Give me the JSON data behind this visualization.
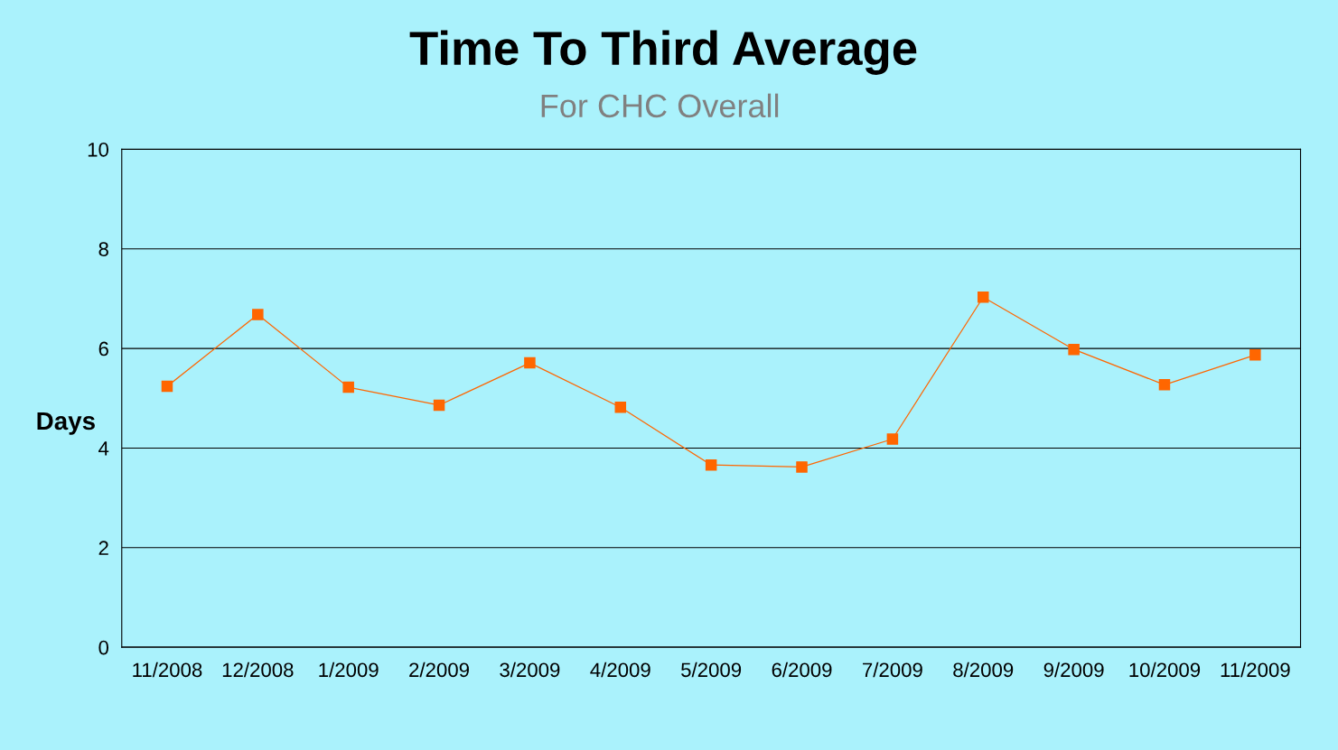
{
  "chart_data": {
    "type": "line",
    "title": "Time To Third Average",
    "subtitle": "For CHC Overall",
    "ylabel": "Days",
    "categories": [
      "11/2008",
      "12/2008",
      "1/2009",
      "2/2009",
      "3/2009",
      "4/2009",
      "5/2009",
      "6/2009",
      "7/2009",
      "8/2009",
      "9/2009",
      "10/2009",
      "11/2009"
    ],
    "series": [
      {
        "color": "#ff6600",
        "values": [
          5.24,
          6.68,
          5.22,
          4.86,
          5.71,
          4.82,
          3.66,
          3.62,
          4.18,
          7.03,
          5.98,
          5.27,
          5.87
        ]
      }
    ],
    "ylim": [
      0,
      10
    ],
    "yticks": [
      0,
      2,
      4,
      6,
      8,
      10
    ],
    "grid": "y",
    "marker": "square",
    "line_style": "solid",
    "legend": false
  }
}
